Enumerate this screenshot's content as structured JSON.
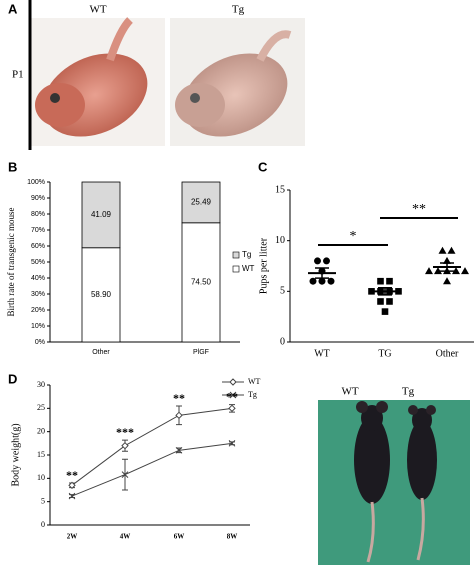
{
  "panels": {
    "a": {
      "label": "A",
      "row_label": "P1",
      "columns": [
        "WT",
        "Tg"
      ]
    },
    "b": {
      "label": "B"
    },
    "c": {
      "label": "C"
    },
    "d": {
      "label": "D",
      "photo_labels": [
        "WT",
        "Tg"
      ]
    }
  },
  "chart_data": [
    {
      "type": "stacked-bar",
      "ylabel": "Birth rate of transgenic mouse",
      "categories": [
        "Other",
        "PlGF"
      ],
      "series": [
        {
          "name": "WT",
          "color": "#ffffff",
          "values": [
            58.9,
            74.5
          ],
          "value_labels": [
            "58.90",
            "74.50"
          ]
        },
        {
          "name": "Tg",
          "color": "#d9d9d9",
          "values": [
            41.09,
            25.49
          ]
        }
      ],
      "ylim": [
        0,
        100
      ],
      "yticks": [
        {
          "value": 0,
          "label": "0%"
        },
        {
          "value": 10,
          "label": "10%"
        },
        {
          "value": 20,
          "label": "20%"
        },
        {
          "value": 30,
          "label": "30%"
        },
        {
          "value": 40,
          "label": "40%"
        },
        {
          "value": 50,
          "label": "50%"
        },
        {
          "value": 60,
          "label": "60%"
        },
        {
          "value": 70,
          "label": "70%"
        },
        {
          "value": 80,
          "label": "80%"
        },
        {
          "value": 90,
          "label": "90%"
        },
        {
          "value": 100,
          "label": "100%"
        }
      ],
      "legend": "right"
    },
    {
      "type": "dot",
      "ylabel": "Pups per litter",
      "categories": [
        "WT",
        "TG",
        "Other"
      ],
      "color": "#000000",
      "groups": [
        {
          "marker": "circle",
          "values": [
            8,
            8,
            7,
            6,
            6,
            6
          ],
          "mean": 6.8,
          "sem": 0.5
        },
        {
          "marker": "square",
          "values": [
            6,
            6,
            5,
            5,
            5,
            5,
            4,
            4,
            3
          ],
          "mean": 5.0,
          "sem": 0.35
        },
        {
          "marker": "triangle",
          "values": [
            9,
            9,
            8,
            7,
            7,
            7,
            7,
            7,
            6
          ],
          "mean": 7.4,
          "sem": 0.4
        }
      ],
      "annotations": [
        "*",
        "**"
      ],
      "ylim": [
        0,
        15
      ],
      "yticks": [
        0,
        5,
        10,
        15
      ]
    },
    {
      "type": "line",
      "ylabel": "Body weight(g)",
      "categories": [
        "2W",
        "4W",
        "6W",
        "8W"
      ],
      "series": [
        {
          "name": "WT",
          "color": "#444444",
          "marker": "diamond",
          "values": [
            8.5,
            17,
            23.5,
            25
          ],
          "errors": [
            0.5,
            1.2,
            2,
            0.8
          ]
        },
        {
          "name": "Tg",
          "color": "#444444",
          "marker": "cross",
          "values": [
            6.2,
            10.8,
            16,
            17.5
          ],
          "errors": [
            0.3,
            3.3,
            0.5,
            0.3
          ]
        }
      ],
      "annotations": [
        "**",
        "***",
        "**",
        "**"
      ],
      "ylim": [
        0,
        30
      ],
      "yticks": [
        0,
        5,
        10,
        15,
        20,
        25,
        30
      ],
      "legend": "top-right"
    }
  ]
}
